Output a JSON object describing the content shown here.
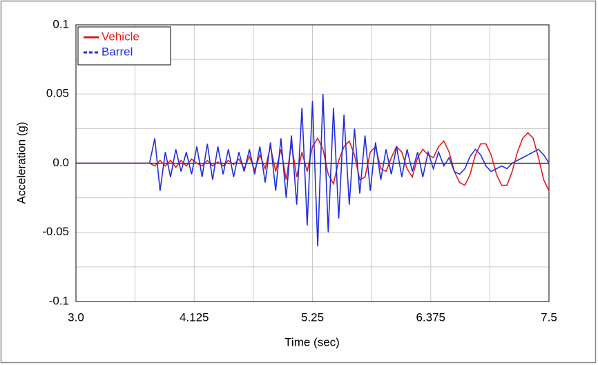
{
  "chart_data": {
    "type": "line",
    "x_label": "Time (sec)",
    "y_label": "Acceleration (g)",
    "x": [
      3.0,
      3.05,
      3.1,
      3.15,
      3.2,
      3.25,
      3.3,
      3.35,
      3.4,
      3.45,
      3.5,
      3.55,
      3.6,
      3.65,
      3.7,
      3.75,
      3.8,
      3.85,
      3.9,
      3.95,
      4.0,
      4.05,
      4.1,
      4.15,
      4.2,
      4.25,
      4.3,
      4.35,
      4.4,
      4.45,
      4.5,
      4.55,
      4.6,
      4.65,
      4.7,
      4.75,
      4.8,
      4.85,
      4.9,
      4.95,
      5.0,
      5.05,
      5.1,
      5.15,
      5.2,
      5.25,
      5.3,
      5.35,
      5.4,
      5.45,
      5.5,
      5.55,
      5.6,
      5.65,
      5.7,
      5.75,
      5.8,
      5.85,
      5.9,
      5.95,
      6.0,
      6.05,
      6.1,
      6.15,
      6.2,
      6.25,
      6.3,
      6.35,
      6.4,
      6.45,
      6.5,
      6.55,
      6.6,
      6.65,
      6.7,
      6.75,
      6.8,
      6.85,
      6.9,
      6.95,
      7.0,
      7.05,
      7.1,
      7.15,
      7.2,
      7.25,
      7.3,
      7.35,
      7.4,
      7.45,
      7.5
    ],
    "series": [
      {
        "name": "Vehicle",
        "color": "#e41a1c",
        "legend_dash": false,
        "values": [
          0,
          0,
          0,
          0,
          0,
          0,
          0,
          0,
          0,
          0,
          0,
          0,
          0,
          0,
          0,
          -0.002,
          0.002,
          -0.002,
          0.002,
          -0.003,
          0.002,
          -0.002,
          0.003,
          0,
          -0.002,
          0.002,
          -0.002,
          0.001,
          -0.002,
          0.002,
          -0.001,
          0.003,
          -0.004,
          0.005,
          -0.005,
          0.006,
          -0.004,
          0.012,
          -0.006,
          0.01,
          -0.012,
          0.014,
          -0.01,
          0.008,
          -0.006,
          0.012,
          0.018,
          0.01,
          -0.008,
          -0.015,
          0.002,
          0.012,
          0.016,
          0.006,
          -0.012,
          -0.01,
          0.008,
          0.012,
          -0.004,
          -0.006,
          0.004,
          0.012,
          0.008,
          -0.004,
          -0.01,
          0.004,
          0.01,
          0.006,
          0.004,
          0.012,
          0.016,
          0.008,
          -0.006,
          -0.014,
          -0.016,
          -0.008,
          0.006,
          0.014,
          0.014,
          0.006,
          -0.008,
          -0.016,
          -0.016,
          -0.006,
          0.008,
          0.018,
          0.022,
          0.018,
          0.004,
          -0.012,
          -0.02
        ]
      },
      {
        "name": "Barrel",
        "color": "#1f2fd6",
        "legend_dash": true,
        "values": [
          0,
          0,
          0,
          0,
          0,
          0,
          0,
          0,
          0,
          0,
          0,
          0,
          0,
          0,
          0,
          0.018,
          -0.02,
          0.008,
          -0.01,
          0.01,
          -0.006,
          0.008,
          -0.008,
          0.012,
          -0.01,
          0.014,
          -0.012,
          0.012,
          -0.008,
          0.01,
          -0.01,
          0.008,
          -0.006,
          0.01,
          -0.008,
          0.012,
          -0.014,
          0.015,
          -0.02,
          0.018,
          -0.025,
          0.02,
          -0.03,
          0.04,
          -0.045,
          0.045,
          -0.06,
          0.05,
          -0.05,
          0.04,
          -0.04,
          0.035,
          -0.03,
          0.025,
          -0.022,
          0.02,
          -0.02,
          0.015,
          -0.012,
          0.01,
          -0.008,
          0.012,
          -0.01,
          0.01,
          -0.006,
          0.008,
          -0.01,
          0.008,
          -0.004,
          0.008,
          -0.002,
          0.004,
          -0.006,
          -0.008,
          -0.004,
          0.005,
          0.01,
          0.006,
          -0.002,
          -0.006,
          -0.004,
          -0.002,
          -0.004,
          0,
          0.002,
          0.004,
          0.006,
          0.008,
          0.01,
          0.006,
          0
        ]
      }
    ],
    "xlim": [
      3.0,
      7.5
    ],
    "xticks": [
      {
        "value": 3.0,
        "label": "3.0"
      },
      4.125,
      5.25,
      6.375,
      7.5
    ],
    "xminorticks": [
      3.5625,
      4.6875,
      5.8125,
      6.9375
    ],
    "ylim": [
      -0.1,
      0.1
    ],
    "yticks": [
      -0.1,
      -0.05,
      {
        "value": 0,
        "label": "0.0"
      },
      0.05,
      0.1
    ],
    "yminorticks": [
      -0.075,
      -0.025,
      0.025,
      0.075
    ],
    "grid": true,
    "legend": "upper-left"
  }
}
